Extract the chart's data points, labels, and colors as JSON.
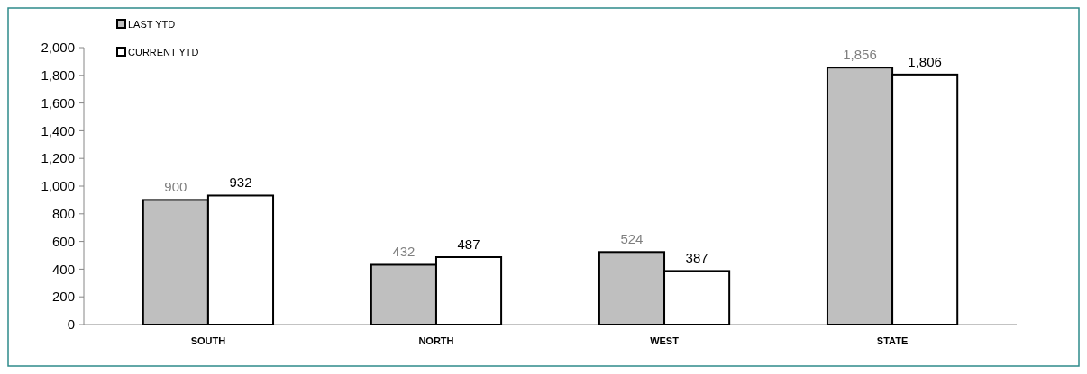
{
  "chart_data": {
    "type": "bar",
    "categories": [
      "SOUTH",
      "NORTH",
      "WEST",
      "STATE"
    ],
    "series": [
      {
        "name": "LAST YTD",
        "color": "#bfbfbf",
        "values": [
          900,
          432,
          524,
          1856
        ],
        "value_labels": [
          "900",
          "432",
          "524",
          "1,856"
        ]
      },
      {
        "name": "CURRENT YTD",
        "color": "#ffffff",
        "values": [
          932,
          487,
          387,
          1806
        ],
        "value_labels": [
          "932",
          "487",
          "387",
          "1,806"
        ]
      }
    ],
    "ylim": [
      0,
      2000
    ],
    "yticks": [
      0,
      200,
      400,
      600,
      800,
      {
        "value": 1000,
        "label": "1,000"
      },
      {
        "value": 1200,
        "label": "1,200"
      },
      {
        "value": 1400,
        "label": "1,400"
      },
      {
        "value": 1600,
        "label": "1,600"
      },
      {
        "value": 1800,
        "label": "1,800"
      },
      {
        "value": 2000,
        "label": "2,000"
      }
    ],
    "grid": false,
    "legend": "top left"
  }
}
